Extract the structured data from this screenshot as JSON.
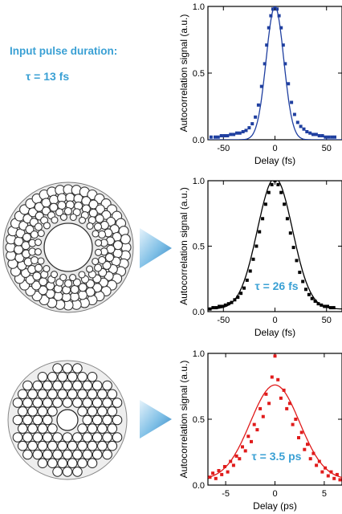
{
  "intro": {
    "title": "Input pulse duration:",
    "tau_text": "τ = 13 fs"
  },
  "colors": {
    "blue": "#1f3fa0",
    "black": "#000000",
    "red": "#e01b1b",
    "annotation": "#3aa0d4",
    "arrow_light": "#d6ecf8",
    "arrow_dark": "#3a8fc9"
  },
  "chart_data": [
    {
      "type": "scatter",
      "color": "#1f3fa0",
      "xlabel": "Delay (fs)",
      "ylabel": "Autocorrelation signal (a.u.)",
      "xlim": [
        -65,
        65
      ],
      "ylim": [
        0,
        1.0
      ],
      "xticks": [
        -50,
        0,
        50
      ],
      "xticklabels": [
        "-50",
        "0",
        "50"
      ],
      "yticks": [
        0,
        0.5,
        1.0
      ],
      "yticklabels": [
        "0.0",
        "0.5",
        "1.0"
      ],
      "annotation": "",
      "fit_fwhm": 13,
      "fit_amp": 1.0,
      "fit_width": 8.5,
      "fit_base": 0.0,
      "points": {
        "x": [
          -62,
          -58,
          -55,
          -52,
          -49,
          -46,
          -43,
          -40,
          -37,
          -34,
          -31,
          -28,
          -25,
          -22,
          -19,
          -16,
          -13,
          -10,
          -8,
          -6,
          -4,
          -2,
          0,
          2,
          4,
          6,
          8,
          10,
          13,
          16,
          19,
          22,
          25,
          28,
          31,
          34,
          37,
          40,
          43,
          46,
          49,
          52,
          55,
          58
        ],
        "y": [
          0.02,
          0.02,
          0.02,
          0.03,
          0.03,
          0.03,
          0.04,
          0.04,
          0.05,
          0.05,
          0.06,
          0.07,
          0.09,
          0.12,
          0.17,
          0.26,
          0.4,
          0.57,
          0.71,
          0.84,
          0.93,
          0.98,
          1.0,
          0.98,
          0.93,
          0.84,
          0.71,
          0.57,
          0.42,
          0.28,
          0.19,
          0.13,
          0.1,
          0.08,
          0.06,
          0.05,
          0.04,
          0.04,
          0.03,
          0.03,
          0.02,
          0.02,
          0.02,
          0.02
        ]
      }
    },
    {
      "type": "scatter",
      "color": "#000000",
      "xlabel": "Delay (fs)",
      "ylabel": "Autocorrelation signal (a.u.)",
      "xlim": [
        -65,
        65
      ],
      "ylim": [
        0,
        1.0
      ],
      "xticks": [
        -50,
        0,
        50
      ],
      "xticklabels": [
        "-50",
        "0",
        "50"
      ],
      "yticks": [
        0,
        0.5,
        1.0
      ],
      "yticklabels": [
        "0.0",
        "0.5",
        "1.0"
      ],
      "annotation": "τ = 26 fs",
      "fit_amp": 1.0,
      "fit_width": 17,
      "fit_base": 0.02,
      "points": {
        "x": [
          -63,
          -60,
          -57,
          -54,
          -51,
          -48,
          -45,
          -42,
          -39,
          -36,
          -33,
          -30,
          -27,
          -24,
          -21,
          -18,
          -15,
          -12,
          -9,
          -6,
          -3,
          0,
          3,
          6,
          9,
          12,
          15,
          18,
          21,
          24,
          27,
          30,
          33,
          36,
          39,
          42,
          45,
          48,
          51,
          54,
          57
        ],
        "y": [
          0.02,
          0.03,
          0.03,
          0.04,
          0.04,
          0.05,
          0.06,
          0.07,
          0.09,
          0.11,
          0.14,
          0.18,
          0.24,
          0.31,
          0.4,
          0.5,
          0.61,
          0.71,
          0.82,
          0.91,
          0.97,
          1.0,
          0.97,
          0.91,
          0.82,
          0.71,
          0.6,
          0.49,
          0.39,
          0.3,
          0.23,
          0.17,
          0.13,
          0.1,
          0.08,
          0.06,
          0.05,
          0.04,
          0.04,
          0.03,
          0.03
        ]
      }
    },
    {
      "type": "scatter",
      "color": "#e01b1b",
      "xlabel": "Delay (ps)",
      "ylabel": "Autocorrelation signal (a.u.)",
      "xlim": [
        -6.8,
        6.8
      ],
      "ylim": [
        0,
        1.0
      ],
      "xticks": [
        -5,
        0,
        5
      ],
      "xticklabels": [
        "-5",
        "0",
        "5"
      ],
      "yticks": [
        0,
        0.5,
        1.0
      ],
      "yticklabels": [
        "0.0",
        "0.5",
        "1.0"
      ],
      "annotation": "τ = 3.5 ps",
      "fit_amp": 0.72,
      "fit_width": 2.5,
      "fit_base": 0.04,
      "points": {
        "x": [
          -6.6,
          -6.3,
          -6.0,
          -5.7,
          -5.4,
          -5.1,
          -4.8,
          -4.5,
          -4.2,
          -3.9,
          -3.6,
          -3.3,
          -3.0,
          -2.7,
          -2.4,
          -2.1,
          -1.8,
          -1.5,
          -1.2,
          -0.9,
          -0.6,
          -0.3,
          0.0,
          0.3,
          0.6,
          0.9,
          1.2,
          1.5,
          1.8,
          2.1,
          2.4,
          2.7,
          3.0,
          3.3,
          3.6,
          3.9,
          4.2,
          4.5,
          4.8,
          5.1,
          5.4,
          5.7,
          6.0,
          6.3,
          6.6
        ],
        "y": [
          0.06,
          0.09,
          0.05,
          0.11,
          0.08,
          0.14,
          0.1,
          0.18,
          0.15,
          0.22,
          0.2,
          0.29,
          0.26,
          0.37,
          0.33,
          0.46,
          0.42,
          0.58,
          0.52,
          0.69,
          0.62,
          0.82,
          0.98,
          0.8,
          0.66,
          0.72,
          0.58,
          0.62,
          0.46,
          0.5,
          0.36,
          0.4,
          0.27,
          0.31,
          0.2,
          0.24,
          0.15,
          0.18,
          0.1,
          0.13,
          0.07,
          0.1,
          0.05,
          0.08,
          0.04
        ]
      }
    }
  ]
}
